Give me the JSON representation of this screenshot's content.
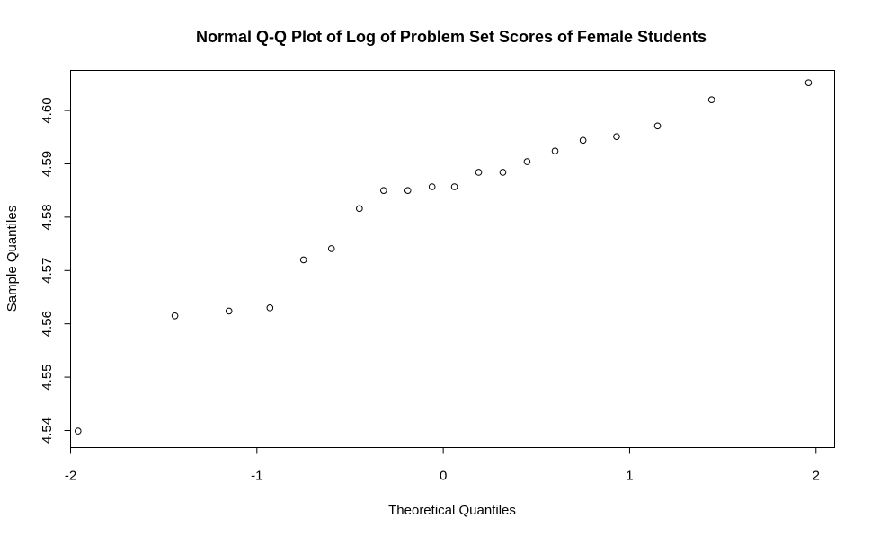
{
  "chart_data": {
    "type": "scatter",
    "title": "Normal Q-Q Plot of Log of Problem Set Scores of Female Students",
    "xlabel": "Theoretical Quantiles",
    "ylabel": "Sample Quantiles",
    "xlim": [
      -2.0,
      2.1
    ],
    "ylim": [
      4.5368,
      4.6075
    ],
    "xticks": [
      "-2",
      "-1",
      "0",
      "1",
      "2"
    ],
    "yticks": [
      "4.54",
      "4.55",
      "4.56",
      "4.57",
      "4.58",
      "4.59",
      "4.60"
    ],
    "grid": false,
    "marker": "open-circle",
    "series": [
      {
        "x": [
          -1.96,
          -1.44,
          -1.15,
          -0.93,
          -0.75,
          -0.6,
          -0.45,
          -0.32,
          -0.19,
          -0.06,
          0.06,
          0.19,
          0.32,
          0.45,
          0.6,
          0.75,
          0.93,
          1.15,
          1.44,
          1.96
        ],
        "y": [
          4.5399,
          4.5615,
          4.5624,
          4.563,
          4.572,
          4.5741,
          4.5816,
          4.585,
          4.585,
          4.5857,
          4.5857,
          4.5884,
          4.5884,
          4.5904,
          4.5924,
          4.5944,
          4.5951,
          4.5971,
          4.602,
          4.6052
        ]
      }
    ]
  }
}
